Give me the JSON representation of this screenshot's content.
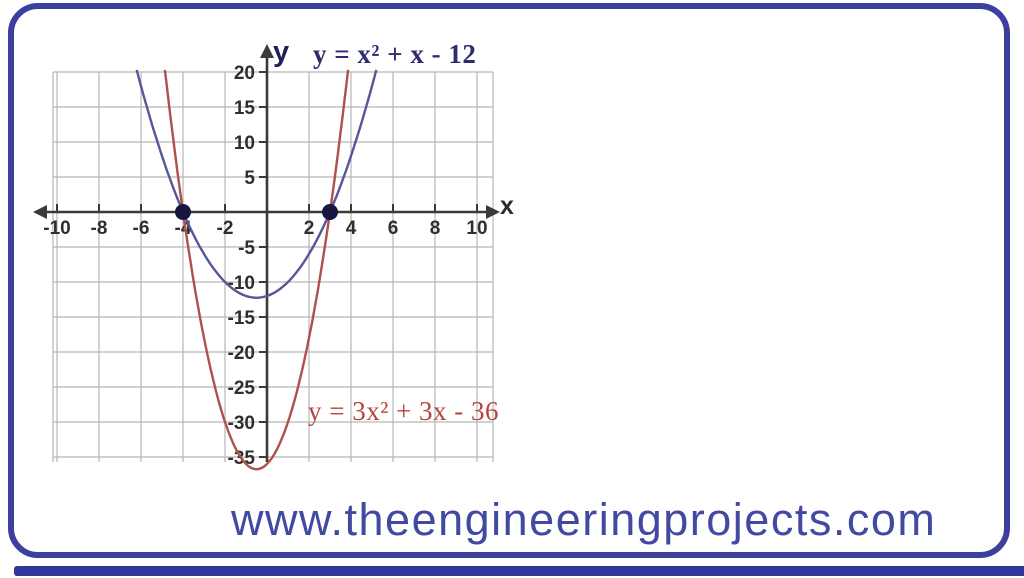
{
  "frame": {
    "border_color": "#3c3f9d",
    "accent_bar_color": "#32359b"
  },
  "watermark": {
    "url": "www.theengineeringprojects.com",
    "color": "#4149a1"
  },
  "chart_data": {
    "type": "line",
    "description": "Two upward-opening parabolas with common roots at x = -4 and x = 3, roots marked with dots on the x-axis",
    "series": [
      {
        "label": "y = x² + x - 12",
        "coefficients": {
          "a": 1,
          "b": 1,
          "c": -12
        },
        "color": "#56569b",
        "label_color": "#2d2d6e"
      },
      {
        "label": "y = 3x² + 3x - 36",
        "coefficients": {
          "a": 3,
          "b": 3,
          "c": -36
        },
        "color": "#b0504c",
        "label_color": "#b5443e"
      }
    ],
    "x_axis": {
      "label": "x",
      "ticks": [
        -10,
        -8,
        -6,
        -4,
        -2,
        2,
        4,
        6,
        8,
        10
      ],
      "range": [
        -10,
        10
      ],
      "grid_step": 2
    },
    "y_axis": {
      "label": "y",
      "ticks": [
        20,
        15,
        10,
        5,
        -5,
        -10,
        -15,
        -20,
        -25,
        -30,
        -35
      ],
      "range": [
        -35,
        20
      ],
      "grid_step": 5
    },
    "marked_points": [
      {
        "x": -4,
        "y": 0
      },
      {
        "x": 3,
        "y": 0
      }
    ],
    "grid": true,
    "legend_position": "inline-annotations",
    "colors": {
      "axis": "#3a3a3a",
      "grid": "#b6b6b6",
      "tick_label": "#2e2e2e",
      "point": "#16163f",
      "y_axis_label": "#20205c",
      "x_axis_label": "#2d2d2d"
    }
  }
}
